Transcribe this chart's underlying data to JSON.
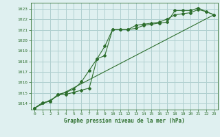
{
  "title": "Graphe pression niveau de la mer (hPa)",
  "background_color": "#dff0f0",
  "grid_color": "#b0d0d0",
  "line_color": "#2d6e2d",
  "xlim": [
    -0.5,
    23.5
  ],
  "ylim": [
    1013.4,
    1023.6
  ],
  "yticks": [
    1014,
    1015,
    1016,
    1017,
    1018,
    1019,
    1020,
    1021,
    1022,
    1023
  ],
  "xticks": [
    0,
    1,
    2,
    3,
    4,
    5,
    6,
    7,
    8,
    9,
    10,
    11,
    12,
    13,
    14,
    15,
    16,
    17,
    18,
    19,
    20,
    21,
    22,
    23
  ],
  "series1_x": [
    0,
    1,
    2,
    3,
    4,
    5,
    6,
    7,
    8,
    9,
    10,
    11,
    12,
    13,
    14,
    15,
    16,
    17,
    18,
    19,
    20,
    21,
    22,
    23
  ],
  "series1_y": [
    1013.55,
    1014.05,
    1014.2,
    1014.85,
    1014.85,
    1015.05,
    1015.25,
    1015.45,
    1018.25,
    1018.55,
    1021.05,
    1021.05,
    1021.05,
    1021.15,
    1021.45,
    1021.55,
    1021.65,
    1021.75,
    1022.85,
    1022.85,
    1022.85,
    1023.1,
    1022.75,
    1022.45
  ],
  "series2_x": [
    0,
    1,
    2,
    3,
    4,
    5,
    6,
    7,
    8,
    9,
    10,
    11,
    12,
    13,
    14,
    15,
    16,
    17,
    18,
    19,
    20,
    21,
    22,
    23
  ],
  "series2_y": [
    1013.55,
    1014.05,
    1014.2,
    1014.85,
    1015.05,
    1015.35,
    1016.05,
    1017.15,
    1018.25,
    1019.45,
    1021.05,
    1021.05,
    1021.05,
    1021.45,
    1021.55,
    1021.65,
    1021.75,
    1022.05,
    1022.45,
    1022.55,
    1022.65,
    1022.95,
    1022.75,
    1022.45
  ],
  "series3_x": [
    0,
    23
  ],
  "series3_y": [
    1013.55,
    1022.45
  ]
}
